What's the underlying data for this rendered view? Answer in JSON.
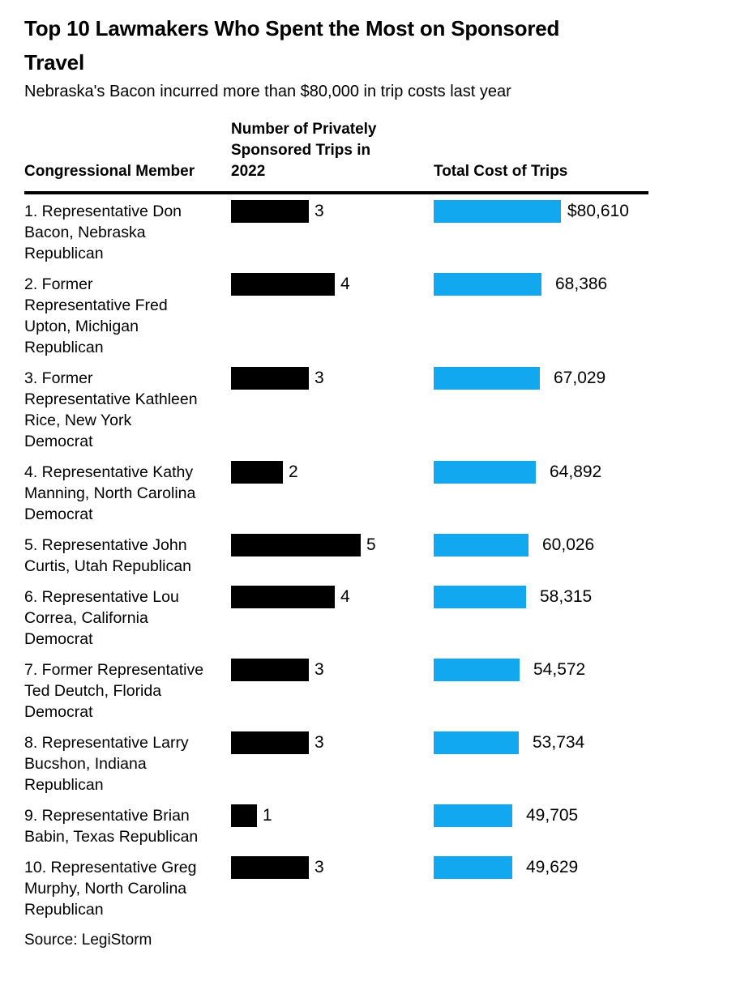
{
  "title": "Top 10 Lawmakers Who Spent the Most on Sponsored\nTravel",
  "subtitle": "Nebraska's Bacon incurred more than $80,000 in trip costs last year",
  "source": "Source: LegiStorm",
  "columns": {
    "member": "Congressional Member",
    "trips": "Number of Privately\nSponsored Trips in\n2022",
    "cost": "Total Cost of Trips"
  },
  "colors": {
    "trips_bar": "#000000",
    "cost_bar": "#12A8F0",
    "text": "#000000"
  },
  "rows": [
    {
      "member": "1. Representative Don\nBacon, Nebraska\nRepublican",
      "trips": 3,
      "trips_label": "3",
      "cost": 80610,
      "cost_label": "$80,610"
    },
    {
      "member": "2. Former\nRepresentative Fred\nUpton, Michigan\nRepublican",
      "trips": 4,
      "trips_label": "4",
      "cost": 68386,
      "cost_label": "68,386"
    },
    {
      "member": "3. Former\nRepresentative Kathleen\nRice, New York\nDemocrat",
      "trips": 3,
      "trips_label": "3",
      "cost": 67029,
      "cost_label": "67,029"
    },
    {
      "member": "4. Representative Kathy\nManning, North Carolina\nDemocrat",
      "trips": 2,
      "trips_label": "2",
      "cost": 64892,
      "cost_label": "64,892"
    },
    {
      "member": "5. Representative John\nCurtis, Utah Republican",
      "trips": 5,
      "trips_label": "5",
      "cost": 60026,
      "cost_label": "60,026"
    },
    {
      "member": "6. Representative Lou\nCorrea, California\nDemocrat",
      "trips": 4,
      "trips_label": "4",
      "cost": 58315,
      "cost_label": "58,315"
    },
    {
      "member": "7. Former Representative\nTed Deutch, Florida\nDemocrat",
      "trips": 3,
      "trips_label": "3",
      "cost": 54572,
      "cost_label": "54,572"
    },
    {
      "member": "8. Representative Larry\nBucshon, Indiana\nRepublican",
      "trips": 3,
      "trips_label": "3",
      "cost": 53734,
      "cost_label": "53,734"
    },
    {
      "member": "9. Representative Brian\nBabin, Texas Republican",
      "trips": 1,
      "trips_label": "1",
      "cost": 49705,
      "cost_label": "49,705"
    },
    {
      "member": "10. Representative Greg\nMurphy, North Carolina\nRepublican",
      "trips": 3,
      "trips_label": "3",
      "cost": 49629,
      "cost_label": "49,629"
    }
  ],
  "chart_data": {
    "type": "bar",
    "orientation": "horizontal",
    "title": "Top 10 Lawmakers Who Spent the Most on Sponsored Travel",
    "subtitle": "Nebraska's Bacon incurred more than $80,000 in trip costs last year",
    "source": "Source: LegiStorm",
    "categories": [
      "1. Representative Don Bacon, Nebraska Republican",
      "2. Former Representative Fred Upton, Michigan Republican",
      "3. Former Representative Kathleen Rice, New York Democrat",
      "4. Representative Kathy Manning, North Carolina Democrat",
      "5. Representative John Curtis, Utah Republican",
      "6. Representative Lou Correa, California Democrat",
      "7. Former Representative Ted Deutch, Florida Democrat",
      "8. Representative Larry Bucshon, Indiana Republican",
      "9. Representative Brian Babin, Texas Republican",
      "10. Representative Greg Murphy, North Carolina Republican"
    ],
    "series": [
      {
        "name": "Number of Privately Sponsored Trips in 2022",
        "values": [
          3,
          4,
          3,
          2,
          5,
          4,
          3,
          3,
          1,
          3
        ],
        "color": "#000000",
        "value_labels": [
          "3",
          "4",
          "3",
          "2",
          "5",
          "4",
          "3",
          "3",
          "1",
          "3"
        ]
      },
      {
        "name": "Total Cost of Trips",
        "values": [
          80610,
          68386,
          67029,
          64892,
          60026,
          58315,
          54572,
          53734,
          49705,
          49629
        ],
        "color": "#12A8F0",
        "value_labels": [
          "$80,610",
          "68,386",
          "67,029",
          "64,892",
          "60,026",
          "58,315",
          "54,572",
          "53,734",
          "49,705",
          "49,629"
        ]
      }
    ],
    "grid": false,
    "legend": "none",
    "value_labels": true
  }
}
